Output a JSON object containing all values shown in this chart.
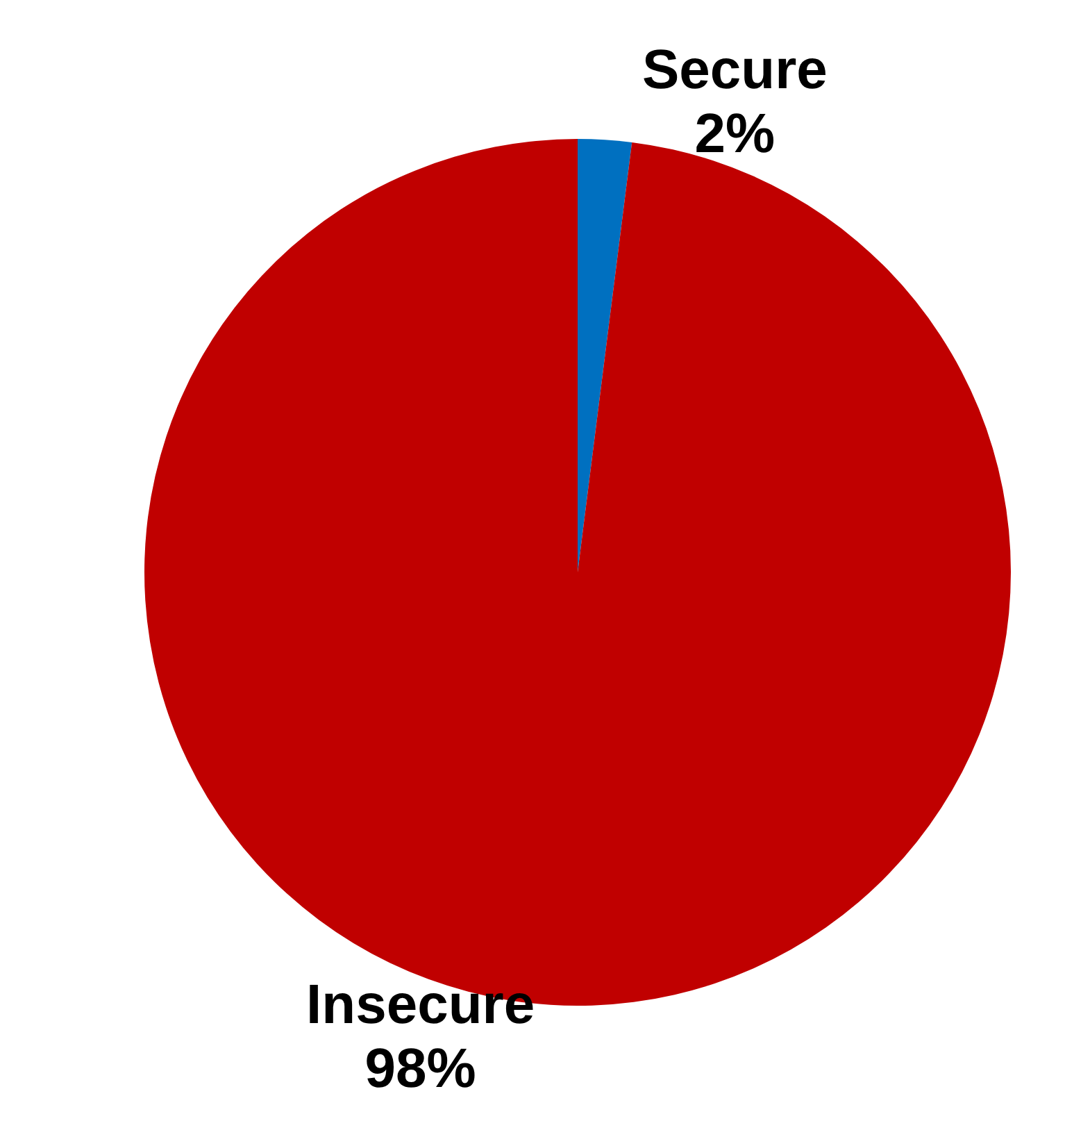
{
  "chart_data": {
    "type": "pie",
    "categories": [
      "Secure",
      "Insecure"
    ],
    "values": [
      2,
      98
    ],
    "colors": [
      "#0070c0",
      "#c00000"
    ],
    "value_labels": [
      "2%",
      "98%"
    ],
    "legend": false
  }
}
